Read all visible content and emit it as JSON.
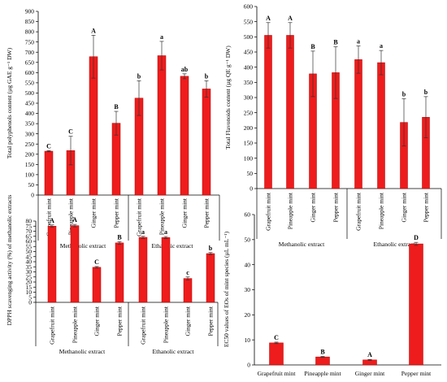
{
  "colors": {
    "bar": "#ee1c1c",
    "bar_edge": "#b30000",
    "axis": "#000000"
  },
  "chart_data": [
    {
      "type": "bar",
      "ylabel": "Total polyphenols content (µg GAE g⁻¹ DW)",
      "ylim": [
        0,
        900
      ],
      "yticks": [
        0,
        50,
        100,
        150,
        200,
        250,
        300,
        350,
        400,
        450,
        500,
        550,
        600,
        650,
        700,
        750,
        800,
        850,
        900
      ],
      "categories": [
        "Grapefruit mint",
        "Pineapple mint",
        "Ginger mint",
        "Pepper mint",
        "Grapefruit mint",
        "Pineapple mint",
        "Ginger mint",
        "Pepper mint"
      ],
      "groups": [
        "Methanolic extract",
        "Ethanolic  extract"
      ],
      "values": [
        215,
        218,
        678,
        352,
        475,
        683,
        582,
        520
      ],
      "errors": [
        3,
        70,
        105,
        58,
        85,
        70,
        12,
        40
      ],
      "letters": [
        "C",
        "C",
        "A",
        "B",
        "b",
        "a",
        "ab",
        "b"
      ]
    },
    {
      "type": "bar",
      "ylabel": "Total Flavonoids content (µg QE g⁻¹ DW)",
      "ylim": [
        0,
        600
      ],
      "yticks": [
        0,
        50,
        100,
        150,
        200,
        250,
        300,
        350,
        400,
        450,
        500,
        550,
        600
      ],
      "categories": [
        "Grapefruit mint",
        "Pineapple mint",
        "Ginger mint",
        "Pepper mint",
        "Grapefruit mint",
        "Pineapple mint",
        "Ginger mint",
        "Pepper mint"
      ],
      "groups": [
        "Methanolic extract",
        "Ethanolic  extract"
      ],
      "values": [
        505,
        505,
        378,
        382,
        425,
        415,
        218,
        235
      ],
      "errors": [
        42,
        42,
        75,
        85,
        45,
        40,
        78,
        68
      ],
      "letters": [
        "A",
        "A",
        "B",
        "B",
        "a",
        "a",
        "b",
        "b"
      ]
    },
    {
      "type": "bar",
      "ylabel": "DPPH scavenging activity (%) of methanolic extracts",
      "ylim": [
        0,
        80
      ],
      "yticks": [
        0,
        5,
        10,
        15,
        20,
        25,
        30,
        35,
        40,
        45,
        50,
        55,
        60,
        65,
        70,
        75,
        80
      ],
      "categories": [
        "Grapefruit mint",
        "Pineapple mint",
        "Ginger mint",
        "Pepper mint",
        "Grapefruit mint",
        "Pineapple mint",
        "Ginger mint",
        "Pepper mint"
      ],
      "groups": [
        "Methanolic extract",
        "Ethanolic  extract"
      ],
      "values": [
        75,
        75.5,
        34.5,
        58.5,
        64,
        63.8,
        23.5,
        48
      ],
      "errors": [
        1.2,
        1.2,
        0.8,
        1.2,
        1.0,
        1.0,
        1.5,
        1.0
      ],
      "letters": [
        "A",
        "A",
        "C",
        "B",
        "a",
        "a",
        "c",
        "b"
      ]
    },
    {
      "type": "bar",
      "ylabel": "EC50 values of EOs of mint species (µL mL⁻¹)",
      "ylim": [
        0,
        60
      ],
      "yticks": [
        0,
        10,
        20,
        30,
        40,
        50,
        60
      ],
      "categories": [
        "Grapefruit mint",
        "Pineapple mint",
        "Ginger mint",
        "Pepper mint"
      ],
      "values": [
        8.8,
        3.2,
        2.0,
        48.3
      ],
      "errors": [
        0.3,
        0.2,
        0.2,
        0.6
      ],
      "letters": [
        "C",
        "B",
        "A",
        "D"
      ]
    }
  ]
}
